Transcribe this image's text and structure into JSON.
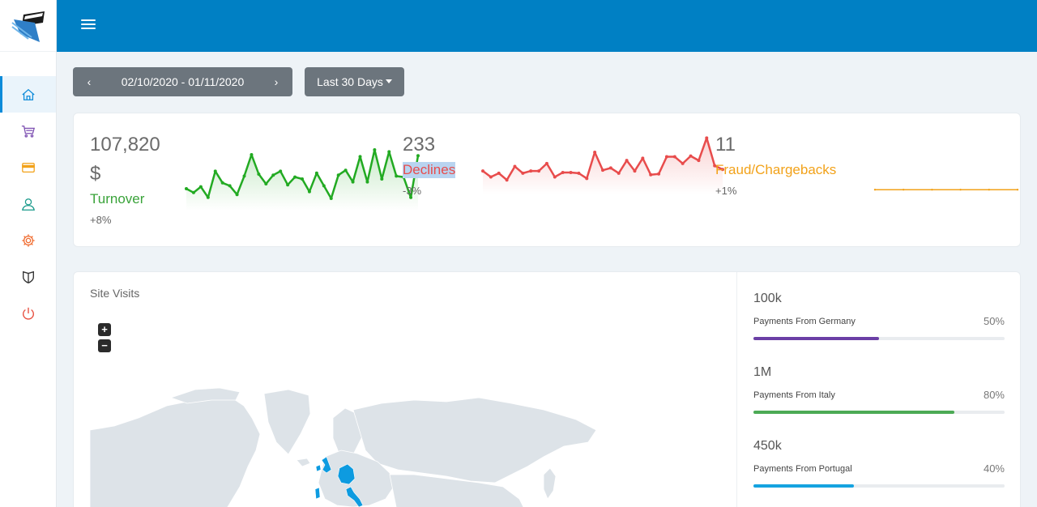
{
  "sidebar": {
    "logo": "credit-card-logo-icon",
    "items": [
      {
        "name": "home",
        "icon": "home-icon",
        "color": "#0d8bd9",
        "active": true
      },
      {
        "name": "cart",
        "icon": "shopping-cart-icon",
        "color": "#7b4db0"
      },
      {
        "name": "card",
        "icon": "credit-card-icon",
        "color": "#f2a21a"
      },
      {
        "name": "user",
        "icon": "user-icon",
        "color": "#1a9a8b"
      },
      {
        "name": "settings",
        "icon": "gear-icon",
        "color": "#f06a2d"
      },
      {
        "name": "shield",
        "icon": "shield-icon",
        "color": "#333333"
      },
      {
        "name": "power",
        "icon": "power-icon",
        "color": "#e74c3c"
      }
    ]
  },
  "topbar": {
    "color": "#0080c4",
    "menu_icon": "hamburger-icon"
  },
  "controls": {
    "date_range": "02/10/2020 - 01/11/2020",
    "prev": "‹",
    "next": "›",
    "preset": "Last 30 Days"
  },
  "stats": {
    "turnover": {
      "value": "107,820",
      "currency": "$",
      "label": "Turnover",
      "change": "+8%",
      "color": "#22aa22"
    },
    "declines": {
      "value": "233",
      "label": "Declines",
      "change": "-3%",
      "color": "#e84c4c"
    },
    "fraud": {
      "value": "11",
      "label": "Fraud/Chargebacks",
      "change": "+1%",
      "color": "#f2a21a"
    }
  },
  "chart_data": [
    {
      "type": "line",
      "series": [
        {
          "values": [
            40,
            36,
            42,
            31,
            58,
            46,
            43,
            34,
            53,
            75,
            55,
            45,
            54,
            58,
            44,
            52,
            50,
            37,
            56,
            43,
            30,
            54,
            59,
            47,
            73,
            47,
            80,
            50,
            78,
            53,
            52,
            31,
            74
          ]
        }
      ]
    },
    {
      "type": "line",
      "series": [
        {
          "values": [
            48,
            40,
            45,
            36,
            54,
            45,
            48,
            48,
            58,
            40,
            46,
            46,
            45,
            38,
            73,
            49,
            52,
            45,
            62,
            48,
            65,
            43,
            44,
            67,
            67,
            58,
            68,
            62,
            92,
            55,
            50
          ]
        }
      ]
    },
    {
      "type": "line",
      "series": [
        {
          "values": [
            2,
            2,
            2,
            2,
            2,
            2
          ]
        }
      ]
    }
  ],
  "visits": {
    "title": "Site Visits",
    "zoom_in": "+",
    "zoom_out": "−"
  },
  "payments": [
    {
      "amount": "100k",
      "label": "Payments From Germany",
      "percent": "50%",
      "fraction": 0.5,
      "color": "#6b3fa6"
    },
    {
      "amount": "1M",
      "label": "Payments From Italy",
      "percent": "80%",
      "fraction": 0.8,
      "color": "#4caa55"
    },
    {
      "amount": "450k",
      "label": "Payments From Portugal",
      "percent": "40%",
      "fraction": 0.4,
      "color": "#15a3e0"
    }
  ]
}
